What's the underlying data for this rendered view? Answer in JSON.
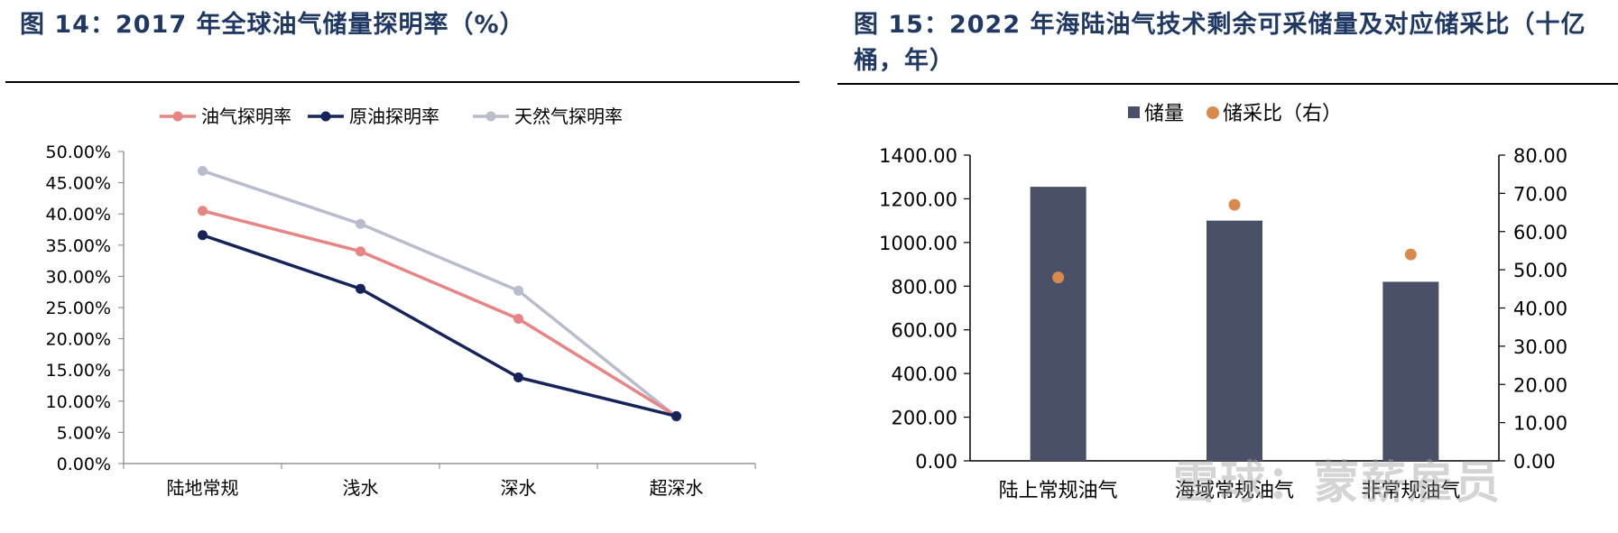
{
  "left_panel": {
    "title": "图 14：2017 年全球油气储量探明率（%）"
  },
  "right_panel": {
    "title": "图 15：2022 年海陆油气技术剩余可采储量及对应储采比（十亿桶，年）"
  },
  "watermark": "雪球：蒙薪雇员",
  "chart_data": [
    {
      "type": "line",
      "categories": [
        "陆地常规",
        "浅水",
        "深水",
        "超深水"
      ],
      "series": [
        {
          "name": "油气探明率",
          "color": "#e88484",
          "values": [
            40.5,
            34.0,
            23.2,
            7.6
          ]
        },
        {
          "name": "原油探明率",
          "color": "#15245b",
          "values": [
            36.6,
            28.0,
            13.8,
            7.6
          ]
        },
        {
          "name": "天然气探明率",
          "color": "#b8bccc",
          "values": [
            46.9,
            38.4,
            27.7,
            7.5
          ]
        }
      ],
      "ylim": [
        0,
        50
      ],
      "yticks": [
        0,
        5,
        10,
        15,
        20,
        25,
        30,
        35,
        40,
        45,
        50
      ],
      "ytick_labels": [
        "0.00%",
        "5.00%",
        "10.00%",
        "15.00%",
        "20.00%",
        "25.00%",
        "30.00%",
        "35.00%",
        "40.00%",
        "45.00%",
        "50.00%"
      ],
      "legend_position": "top",
      "grid": false
    },
    {
      "type": "bar",
      "categories": [
        "陆上常规油气",
        "海域常规油气",
        "非常规油气"
      ],
      "series": [
        {
          "name": "储量",
          "type": "bar",
          "axis": "left",
          "color": "#4a5068",
          "values": [
            1255,
            1100,
            820
          ]
        },
        {
          "name": "储采比（右）",
          "type": "scatter",
          "axis": "right",
          "color": "#d98a4a",
          "values": [
            48,
            67,
            54
          ]
        }
      ],
      "ylim": [
        0,
        1400
      ],
      "yticks": [
        0,
        200,
        400,
        600,
        800,
        1000,
        1200,
        1400
      ],
      "ytick_labels": [
        "0.00",
        "200.00",
        "400.00",
        "600.00",
        "800.00",
        "1000.00",
        "1200.00",
        "1400.00"
      ],
      "y2lim": [
        0,
        80
      ],
      "y2ticks": [
        0,
        10,
        20,
        30,
        40,
        50,
        60,
        70,
        80
      ],
      "y2tick_labels": [
        "0.00",
        "10.00",
        "20.00",
        "30.00",
        "40.00",
        "50.00",
        "60.00",
        "70.00",
        "80.00"
      ],
      "legend_position": "top",
      "grid": false
    }
  ]
}
